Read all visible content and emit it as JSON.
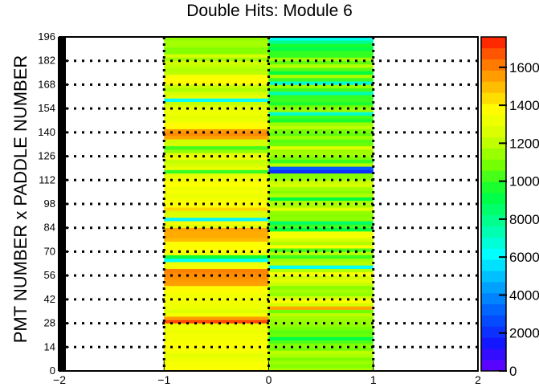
{
  "chart_data": {
    "type": "heatmap",
    "title": "Double Hits: Module 6",
    "ylabel": "PMT NUMBER x PADDLE NUMBER",
    "xlabel": "",
    "xlim": [
      -2,
      2
    ],
    "ylim": [
      0,
      196
    ],
    "x_ticks": [
      "−2",
      "−1",
      "0",
      "1",
      "2"
    ],
    "y_ticks": [
      "0",
      "14",
      "28",
      "42",
      "56",
      "70",
      "84",
      "98",
      "112",
      "126",
      "140",
      "154",
      "168",
      "182",
      "196"
    ],
    "grid": "dotted at y = 14, 28, …, 182 and x = −1, 0, 1",
    "colorbar": {
      "range": [
        0,
        17600
      ],
      "ticks": [
        "0",
        "2000",
        "4000",
        "6000",
        "8000",
        "10000",
        "12000",
        "14000",
        "16000"
      ],
      "tick_values": [
        0,
        2000,
        4000,
        6000,
        8000,
        10000,
        12000,
        14000,
        16000
      ]
    },
    "x_bins": [
      [
        -1,
        0
      ],
      [
        0,
        1
      ]
    ],
    "y_bin_width": 2,
    "values_left": [
      13600,
      13500,
      13500,
      13200,
      12900,
      13300,
      13600,
      13700,
      13500,
      13300,
      13400,
      13200,
      13200,
      13200,
      16900,
      15500,
      13400,
      12700,
      13200,
      13200,
      13400,
      13400,
      13300,
      13800,
      13800,
      15500,
      15600,
      15800,
      15900,
      16000,
      13300,
      13200,
      6300,
      9500,
      13300,
      13800,
      13600,
      13600,
      15000,
      15300,
      15300,
      15400,
      12800,
      13400,
      6000,
      12700,
      12500,
      14500,
      13700,
      13600,
      13400,
      13000,
      13500,
      13200,
      13700,
      13600,
      13200,
      12900,
      10000,
      13000,
      12400,
      12100,
      13100,
      12900,
      11300,
      10200,
      12400,
      12300,
      15400,
      15900,
      15600,
      13800,
      13800,
      13100,
      12900,
      13200,
      13200,
      12700,
      12100,
      6300,
      12900,
      12400,
      11800,
      12200,
      13800,
      13700,
      13500,
      12000,
      11800,
      12100,
      12300,
      11500,
      12400,
      11100,
      11100,
      11600,
      11600,
      11300
    ],
    "values_right": [
      11600,
      11100,
      11500,
      11000,
      11700,
      12000,
      10900,
      11100,
      10400,
      9100,
      10700,
      10500,
      10900,
      11300,
      11400,
      11500,
      12000,
      10800,
      15400,
      12400,
      13700,
      12300,
      11300,
      11600,
      11200,
      12200,
      12900,
      12400,
      13600,
      11800,
      6300,
      11900,
      11600,
      10100,
      11800,
      10300,
      13500,
      11800,
      12400,
      13500,
      13300,
      9300,
      10100,
      8600,
      11300,
      11200,
      11300,
      12700,
      11700,
      11700,
      9300,
      11800,
      11200,
      11600,
      12500,
      12200,
      11200,
      11100,
      2000,
      3000,
      11900,
      10100,
      11000,
      11600,
      11500,
      12700,
      10700,
      10500,
      11500,
      10600,
      11000,
      12000,
      11400,
      9700,
      10200,
      6900,
      11400,
      10800,
      9700,
      10100,
      10000,
      7300,
      10200,
      11300,
      6800,
      10100,
      11700,
      9300,
      10500,
      11900,
      10600,
      11500,
      10000,
      10000,
      9100,
      9600,
      7900,
      6400
    ]
  }
}
